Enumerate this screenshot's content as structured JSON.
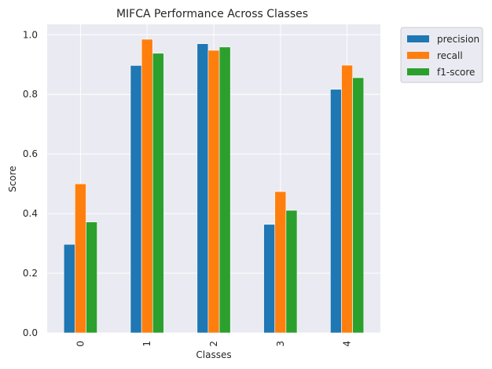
{
  "chart_data": {
    "type": "bar",
    "title": "MIFCA Performance Across Classes",
    "xlabel": "Classes",
    "ylabel": "Score",
    "categories": [
      "0",
      "1",
      "2",
      "3",
      "4"
    ],
    "series": [
      {
        "name": "precision",
        "color": "#1f77b4",
        "values": [
          0.297,
          0.897,
          0.97,
          0.364,
          0.817
        ]
      },
      {
        "name": "recall",
        "color": "#ff7f0e",
        "values": [
          0.5,
          0.985,
          0.948,
          0.474,
          0.898
        ]
      },
      {
        "name": "f1-score",
        "color": "#2ca02c",
        "values": [
          0.372,
          0.938,
          0.959,
          0.411,
          0.856
        ]
      }
    ],
    "ylim": [
      0,
      1.035
    ],
    "yticks": [
      "0.0",
      "0.2",
      "0.4",
      "0.6",
      "0.8",
      "1.0"
    ],
    "grid": true,
    "background": "#eaeaf2",
    "legend_position": "outside-top-right"
  }
}
